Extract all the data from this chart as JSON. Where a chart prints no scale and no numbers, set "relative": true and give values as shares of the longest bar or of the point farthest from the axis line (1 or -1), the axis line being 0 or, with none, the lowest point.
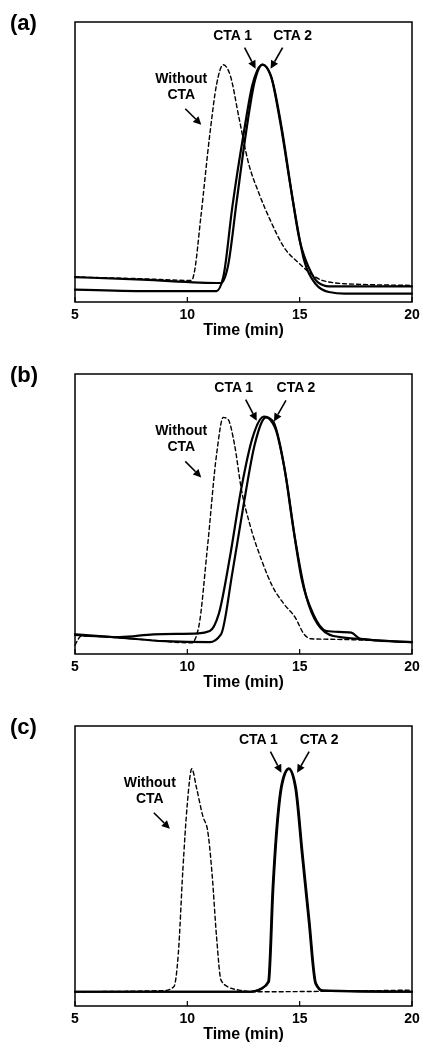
{
  "chart_data": [
    {
      "type": "line",
      "title": "(a)",
      "xlabel": "Time (min)",
      "relative": true,
      "xlim": [
        5,
        20
      ],
      "xticks": [
        5,
        10,
        15,
        20
      ],
      "legend": false,
      "series": [
        {
          "name": "Without CTA",
          "color": "#000000",
          "line_style": "dashed",
          "x": [
            5,
            8,
            10.2,
            10.3,
            10.6,
            11.0,
            11.3,
            11.6,
            11.9,
            12.3,
            12.7,
            13.2,
            13.7,
            14.3,
            15,
            15.5,
            16,
            17,
            20
          ],
          "values": [
            0.105,
            0.098,
            0.091,
            0.12,
            0.357,
            0.706,
            0.916,
            1.0,
            0.958,
            0.776,
            0.594,
            0.455,
            0.343,
            0.231,
            0.161,
            0.119,
            0.091,
            0.077,
            0.07
          ]
        },
        {
          "name": "CTA 1",
          "color": "#000000",
          "line_style": "solid",
          "x": [
            5,
            8,
            11.5,
            11.8,
            12.2,
            12.6,
            13.0,
            13.35,
            13.7,
            14.1,
            14.6,
            15.0,
            15.4,
            15.8,
            16.3,
            20
          ],
          "values": [
            0.105,
            0.094,
            0.08,
            0.147,
            0.427,
            0.706,
            0.93,
            1.0,
            0.958,
            0.776,
            0.483,
            0.259,
            0.147,
            0.084,
            0.066,
            0.066
          ]
        },
        {
          "name": "CTA 2",
          "color": "#000000",
          "line_style": "solid",
          "x": [
            5,
            8,
            11.3,
            11.6,
            12.0,
            12.5,
            12.9,
            13.35,
            13.75,
            14.2,
            14.7,
            15.2,
            15.7,
            16.3,
            17,
            20
          ],
          "values": [
            0.052,
            0.046,
            0.046,
            0.105,
            0.399,
            0.706,
            0.916,
            1.0,
            0.944,
            0.734,
            0.427,
            0.175,
            0.077,
            0.042,
            0.035,
            0.035
          ]
        }
      ]
    },
    {
      "type": "line",
      "title": "(b)",
      "xlabel": "Time (min)",
      "relative": true,
      "xlim": [
        5,
        20
      ],
      "xticks": [
        5,
        10,
        15,
        20
      ],
      "legend": false,
      "series": [
        {
          "name": "Without CTA",
          "color": "#000000",
          "line_style": "dashed",
          "x": [
            5,
            5.3,
            8,
            10.2,
            10.5,
            10.9,
            11.3,
            11.6,
            11.8,
            12.1,
            12.4,
            12.8,
            13.3,
            13.8,
            14.3,
            14.8,
            15.2,
            15.5,
            17,
            20
          ],
          "values": [
            0.037,
            0.076,
            0.061,
            0.047,
            0.111,
            0.454,
            0.84,
            0.997,
            0.99,
            0.883,
            0.697,
            0.54,
            0.397,
            0.283,
            0.211,
            0.154,
            0.083,
            0.064,
            0.061,
            0.05
          ]
        },
        {
          "name": "CTA 1",
          "color": "#000000",
          "line_style": "solid",
          "x": [
            5,
            7,
            8.5,
            10.5,
            11.0,
            11.4,
            11.9,
            12.4,
            12.9,
            13.4,
            13.8,
            14.3,
            14.7,
            15.1,
            15.6,
            16.2,
            17.3,
            17.7,
            20
          ],
          "values": [
            0.08,
            0.071,
            0.083,
            0.087,
            0.097,
            0.169,
            0.411,
            0.697,
            0.911,
            1.0,
            0.983,
            0.797,
            0.54,
            0.311,
            0.169,
            0.097,
            0.09,
            0.064,
            0.05
          ]
        },
        {
          "name": "CTA 2",
          "color": "#000000",
          "line_style": "solid",
          "x": [
            5,
            7,
            9,
            11.0,
            11.5,
            12.0,
            12.5,
            13.0,
            13.5,
            13.9,
            14.4,
            14.8,
            15.3,
            15.8,
            16.5,
            18,
            20
          ],
          "values": [
            0.083,
            0.069,
            0.054,
            0.05,
            0.083,
            0.34,
            0.626,
            0.883,
            0.997,
            0.954,
            0.74,
            0.483,
            0.24,
            0.126,
            0.076,
            0.061,
            0.05
          ]
        }
      ]
    },
    {
      "type": "line",
      "title": "(c)",
      "xlabel": "Time (min)",
      "relative": true,
      "xlim": [
        5,
        20
      ],
      "xticks": [
        5,
        10,
        15,
        20
      ],
      "legend": false,
      "series": [
        {
          "name": "Without CTA",
          "color": "#000000",
          "line_style": "dashed",
          "x": [
            5,
            9,
            9.4,
            9.6,
            9.8,
            10.0,
            10.2,
            10.4,
            10.7,
            10.9,
            11.1,
            11.3,
            11.5,
            11.8,
            12.3,
            13,
            20
          ],
          "values": [
            0.06,
            0.065,
            0.081,
            0.222,
            0.572,
            0.853,
            1.0,
            0.923,
            0.797,
            0.741,
            0.558,
            0.292,
            0.109,
            0.081,
            0.067,
            0.06,
            0.067
          ]
        },
        {
          "name": "CTA 1",
          "color": "#000000",
          "line_style": "solid",
          "x": [
            5,
            12.8,
            13.3,
            13.6,
            13.8,
            14.0,
            14.2,
            14.5,
            14.8,
            15.1,
            15.4,
            15.7,
            16.0,
            20
          ],
          "values": [
            0.06,
            0.06,
            0.074,
            0.102,
            0.502,
            0.783,
            0.937,
            1.0,
            0.923,
            0.642,
            0.362,
            0.095,
            0.065,
            0.06
          ]
        },
        {
          "name": "CTA 2",
          "color": "#000000",
          "line_style": "solid",
          "x": [
            5,
            12.8,
            13.33,
            13.63,
            13.83,
            14.03,
            14.23,
            14.53,
            14.83,
            15.13,
            15.43,
            15.73,
            16.03,
            20
          ],
          "values": [
            0.06,
            0.06,
            0.074,
            0.102,
            0.502,
            0.783,
            0.937,
            1.0,
            0.923,
            0.642,
            0.362,
            0.095,
            0.065,
            0.06
          ]
        }
      ]
    }
  ]
}
